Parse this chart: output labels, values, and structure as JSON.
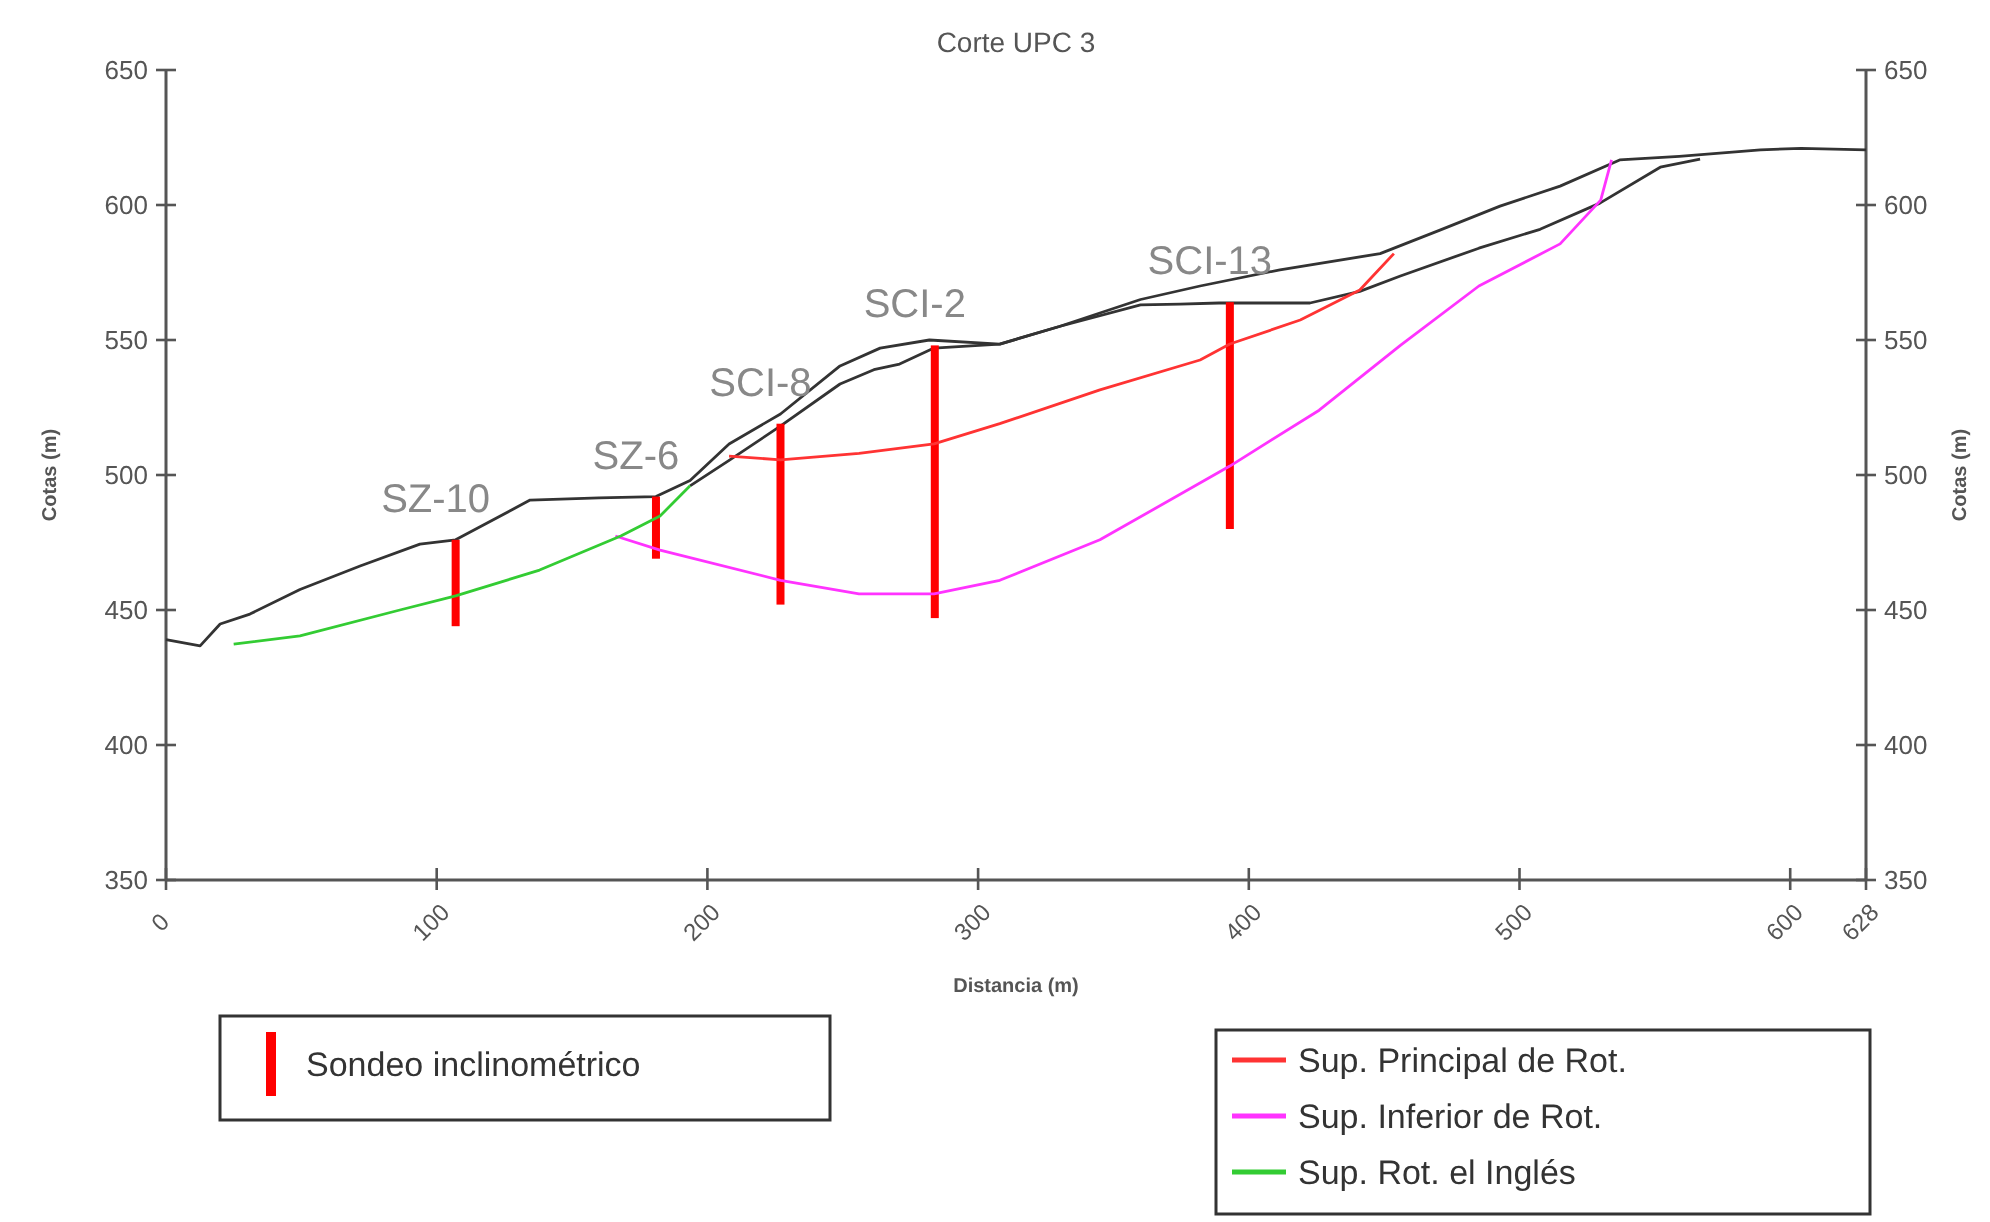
{
  "chart_data": {
    "type": "line",
    "title": "Corte UPC 3",
    "xlabel": "Distancia (m)",
    "ylabel": "Cotas (m)",
    "y2label": "Cotas (m)",
    "xlim": [
      0,
      628
    ],
    "xticks": [
      0,
      100,
      200,
      300,
      400,
      500,
      600,
      628
    ],
    "ylim": [
      350,
      650
    ],
    "yticks": [
      350,
      400,
      450,
      500,
      550,
      600,
      650
    ],
    "y2lim": [
      350,
      650
    ],
    "y2ticks": [
      350,
      400,
      450,
      500,
      550,
      600,
      650
    ],
    "legend": "bottom",
    "series": [
      {
        "color": "#333333",
        "x": [
          0,
          12.6,
          20,
          31,
          49.5,
          71.7,
          93.8,
          107,
          134.5,
          160,
          181,
          193.6,
          208,
          227,
          249,
          263.8,
          282,
          308,
          330,
          360,
          382,
          411.5,
          448.5,
          470.6,
          492.8,
          515,
          537,
          559,
          589,
          604,
          628
        ],
        "values": [
          439,
          436.7,
          444.8,
          448.5,
          457.6,
          466.3,
          474.4,
          476,
          490.7,
          491.5,
          492,
          498,
          511.5,
          522.6,
          540.4,
          547,
          550,
          548.5,
          555,
          565,
          570,
          576,
          582,
          590.7,
          599.6,
          607,
          616.7,
          618,
          620.4,
          621,
          620.4
        ]
      },
      {
        "color": "#333333",
        "x": [
          193.6,
          208.3,
          226.8,
          249,
          261.5,
          271,
          283.7,
          308,
          330,
          360,
          374.6,
          389,
          422.6,
          441,
          456,
          485,
          507.6,
          529.7,
          552,
          566.7
        ],
        "values": [
          496,
          505.6,
          518,
          533.7,
          539,
          541.1,
          547,
          548.5,
          555,
          563,
          563.3,
          563.7,
          563.7,
          568,
          573.7,
          584,
          591,
          600.7,
          614,
          617
        ]
      },
      {
        "type": "bar",
        "name": "Sondeo inclinométrico",
        "color": "#ff0000",
        "x": [
          107,
          181,
          227,
          284,
          393
        ],
        "base": [
          444,
          469,
          452,
          447,
          480
        ],
        "values": [
          32,
          23,
          67,
          101,
          84
        ]
      },
      {
        "name": "Sup. Principal de Rot.",
        "color": "#ff3333",
        "x": [
          208,
          227,
          256,
          283.7,
          308,
          345,
          382,
          393,
          419,
          441,
          453.6
        ],
        "values": [
          507,
          505.6,
          508,
          511.5,
          519,
          531.5,
          542.6,
          548.5,
          557.4,
          568.5,
          582
        ]
      },
      {
        "name": "Sup. Inferior de Rot.",
        "color": "#ff33ff",
        "x": [
          166,
          182.5,
          227,
          256,
          283.7,
          308,
          345,
          393,
          426,
          456,
          485,
          515,
          530,
          534
        ],
        "values": [
          477.4,
          472.2,
          461,
          456,
          456,
          461,
          476,
          503.3,
          524,
          548,
          570,
          585.6,
          601.8,
          616.7
        ]
      },
      {
        "name": "Sup. Rot. el Inglés",
        "color": "#33cc33",
        "x": [
          25,
          49.5,
          86.4,
          107,
          138,
          168,
          182.5,
          193.6
        ],
        "values": [
          437.4,
          440.4,
          450,
          455.2,
          464.8,
          477.4,
          484.8,
          496
        ]
      }
    ],
    "annotations": [
      {
        "text": "SZ-10",
        "x": 107,
        "y": 476
      },
      {
        "text": "SZ-6",
        "x": 181,
        "y": 492
      },
      {
        "text": "SCI-8",
        "x": 227,
        "y": 519
      },
      {
        "text": "SCI-2",
        "x": 284,
        "y": 548
      },
      {
        "text": "SCI-13",
        "x": 393,
        "y": 564
      }
    ]
  }
}
